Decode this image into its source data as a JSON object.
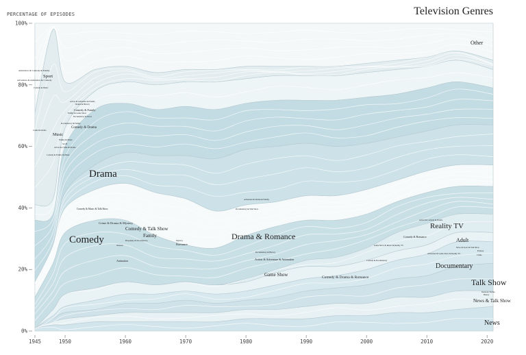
{
  "chart_data": {
    "type": "area",
    "title": "Television Genres",
    "ylabel": "PERCENTAGE OF EPISODES",
    "xlabel": "",
    "stacked": true,
    "normalized": true,
    "xlim": [
      1945,
      2021
    ],
    "ylim": [
      0,
      100
    ],
    "grid": false,
    "x": [
      1945,
      1948,
      1950,
      1955,
      1960,
      1965,
      1970,
      1975,
      1980,
      1985,
      1990,
      1995,
      2000,
      2005,
      2010,
      2015,
      2021
    ],
    "x_ticks": [
      "1945",
      "1950",
      "1960",
      "1970",
      "1980",
      "1990",
      "2000",
      "2010",
      "2020"
    ],
    "y_ticks": [
      "0%",
      "20%",
      "40%",
      "60%",
      "80%",
      "100%"
    ],
    "series": [
      {
        "name": "News",
        "color": "#d3e5ec",
        "values": [
          1,
          2,
          2,
          3,
          3,
          3,
          3,
          3,
          4,
          4,
          4,
          5,
          5,
          6,
          6,
          7,
          8
        ]
      },
      {
        "name": "News & Talk Show",
        "color": "#e8f1f4",
        "values": [
          0,
          1,
          2,
          2,
          3,
          3,
          3,
          3,
          3,
          3,
          4,
          4,
          4,
          5,
          5,
          6,
          5
        ]
      },
      {
        "name": "Talk Show",
        "color": "#cfe2e9",
        "values": [
          0,
          1,
          2,
          2,
          3,
          3,
          4,
          3,
          3,
          4,
          5,
          5,
          6,
          6,
          7,
          8,
          9
        ]
      },
      {
        "name": "Documentary",
        "color": "#d7e8ee",
        "values": [
          0,
          1,
          2,
          3,
          3,
          3,
          3,
          3,
          3,
          4,
          4,
          4,
          5,
          6,
          7,
          8,
          7
        ]
      },
      {
        "name": "Game Show",
        "color": "#e9f2f5",
        "values": [
          0,
          2,
          4,
          4,
          4,
          3,
          3,
          3,
          3,
          4,
          4,
          3,
          3,
          3,
          3,
          3,
          3
        ]
      },
      {
        "name": "Reality TV",
        "color": "#e0edf1",
        "values": [
          0,
          0,
          0,
          0,
          0,
          0,
          0,
          0,
          1,
          1,
          2,
          3,
          4,
          6,
          7,
          6,
          6
        ]
      },
      {
        "name": "Comedy",
        "color": "#c9dfe6",
        "values": [
          10,
          15,
          20,
          22,
          20,
          16,
          12,
          12,
          14,
          14,
          13,
          12,
          11,
          10,
          10,
          9,
          9
        ]
      },
      {
        "name": "Comedy & Family",
        "color": "#f6fafb",
        "values": [
          5,
          6,
          8,
          10,
          12,
          14,
          15,
          12,
          10,
          8,
          8,
          8,
          8,
          7,
          7,
          7,
          7
        ]
      },
      {
        "name": "Drama & Romance",
        "color": "#cce1e8",
        "values": [
          0,
          0,
          5,
          8,
          10,
          12,
          14,
          17,
          18,
          18,
          17,
          16,
          15,
          14,
          13,
          13,
          13
        ]
      },
      {
        "name": "Drama",
        "color": "#c3dbe3",
        "values": [
          20,
          10,
          15,
          18,
          16,
          15,
          16,
          16,
          15,
          15,
          14,
          15,
          15,
          14,
          14,
          14,
          12
        ]
      },
      {
        "name": "Comedy & Drama",
        "color": "#eef5f7",
        "values": [
          5,
          5,
          6,
          6,
          7,
          8,
          8,
          9,
          8,
          8,
          8,
          8,
          8,
          8,
          7,
          7,
          6
        ]
      },
      {
        "name": "Sport",
        "color": "#e3edf0",
        "values": [
          30,
          55,
          15,
          7,
          5,
          4,
          4,
          4,
          4,
          3,
          3,
          3,
          3,
          3,
          3,
          3,
          3
        ]
      },
      {
        "name": "Other",
        "color": "#f4f8f9",
        "values": [
          29,
          2,
          19,
          15,
          14,
          16,
          15,
          15,
          14,
          14,
          14,
          14,
          13,
          12,
          11,
          9,
          12
        ]
      }
    ],
    "labels": [
      "Drama",
      "Comedy",
      "Drama & Romance",
      "Reality TV",
      "Documentary",
      "Talk Show",
      "News & Talk Show",
      "News",
      "Other",
      "Sport",
      "Music",
      "Comedy & Drama",
      "Comedy & Talk Show",
      "Family",
      "Game Show",
      "Comedy & Drama & Romance",
      "Adult",
      "Romance",
      "Crime & Drama & Mystery",
      "Comedy & Music & Talk Show",
      "Animation",
      "Action & Adventure & Animation",
      "Animation & Comedy & Family",
      "Adventure & Animation & Comedy",
      "Comedy & Family",
      "Action & Adventure & Family",
      "Documentary & Family",
      "Crime & Drama",
      "Action & Crime & Drama",
      "Comedy & Family & Music",
      "Comedy & Music",
      "Documentary & News",
      "Family & Game Show",
      "Family & Music",
      "Sci-Fi",
      "Drama & History",
      "Action & Comedy & Drama",
      "Game Show & Music & Reality TV",
      "Adventure & Game Show & Reality TV",
      "Comedy & Romance",
      "Comedy & Documentary",
      "Documentary & Talk Show",
      "Adventure & Drama & Family",
      "Biography & Documentary",
      "Mystery",
      "Western",
      "Drama & Thriller",
      "History",
      "News & Sport & Talk Show",
      "Fantasy",
      "Crime",
      "Documentary & History"
    ]
  }
}
